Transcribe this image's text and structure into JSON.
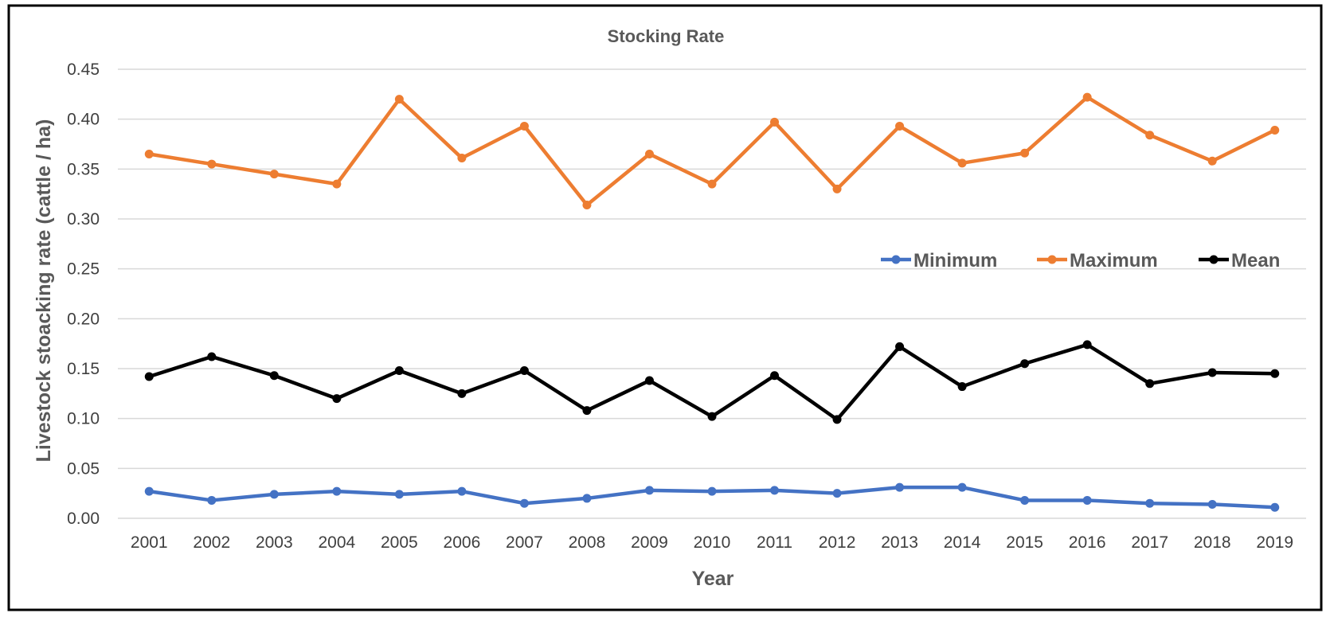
{
  "chart_data": {
    "type": "line",
    "title": "Stocking Rate",
    "xlabel": "Year",
    "ylabel": "Livestock stoacking rate (cattle / ha)",
    "ylim": [
      0,
      0.45
    ],
    "ytick_step": 0.05,
    "yticks": [
      "0.00",
      "0.05",
      "0.10",
      "0.15",
      "0.20",
      "0.25",
      "0.30",
      "0.35",
      "0.40",
      "0.45"
    ],
    "grid": "horizontal",
    "legend_position": "right-middle",
    "categories": [
      "2001",
      "2002",
      "2003",
      "2004",
      "2005",
      "2006",
      "2007",
      "2008",
      "2009",
      "2010",
      "2011",
      "2012",
      "2013",
      "2014",
      "2015",
      "2016",
      "2017",
      "2018",
      "2019"
    ],
    "series": [
      {
        "name": "Minimum",
        "color": "#4472C4",
        "values": [
          0.027,
          0.018,
          0.024,
          0.027,
          0.024,
          0.027,
          0.015,
          0.02,
          0.028,
          0.027,
          0.028,
          0.025,
          0.031,
          0.031,
          0.018,
          0.018,
          0.015,
          0.014,
          0.011
        ]
      },
      {
        "name": "Maximum",
        "color": "#ED7D31",
        "values": [
          0.365,
          0.355,
          0.345,
          0.335,
          0.42,
          0.361,
          0.393,
          0.314,
          0.365,
          0.335,
          0.397,
          0.33,
          0.393,
          0.356,
          0.366,
          0.422,
          0.384,
          0.358,
          0.389
        ]
      },
      {
        "name": "Mean",
        "color": "#000000",
        "values": [
          0.142,
          0.162,
          0.143,
          0.12,
          0.148,
          0.125,
          0.148,
          0.108,
          0.138,
          0.102,
          0.143,
          0.099,
          0.172,
          0.132,
          0.155,
          0.174,
          0.135,
          0.146,
          0.145
        ]
      }
    ]
  }
}
